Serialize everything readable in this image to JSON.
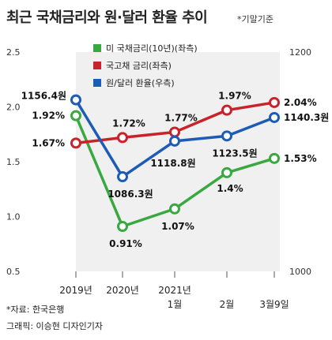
{
  "title": "최근 국채금리와 원·달러 환율 추이",
  "title_note": "*기말기준",
  "source": "*자료: 한국은행",
  "graphic": "그래픽: 이승현 디자인기자",
  "chart_data": {
    "type": "line",
    "title": "최근 국채금리와 원·달러 환율 추이",
    "categories": [
      {
        "line1": "2019년",
        "line2": ""
      },
      {
        "line1": "2020년",
        "line2": ""
      },
      {
        "line1": "2021년",
        "line2": "1월"
      },
      {
        "line1": "",
        "line2": "2월"
      },
      {
        "line1": "",
        "line2": "3월9일"
      }
    ],
    "y_left": {
      "ticks": [
        "2.5",
        "2.0",
        "1.5",
        "1.0",
        "0.5"
      ],
      "range": [
        0.5,
        2.5
      ]
    },
    "y_right": {
      "ticks": [
        "1200",
        "1000"
      ],
      "range": [
        1000,
        1200
      ]
    },
    "grid": false,
    "series": [
      {
        "name": "미 국채금리(10년)(좌측)",
        "axis": "left",
        "color": "#3aa841",
        "values": [
          1.92,
          0.91,
          1.07,
          1.4,
          1.53
        ],
        "labels": [
          "1.92%",
          "0.91%",
          "1.07%",
          "1.4%",
          "1.53%"
        ]
      },
      {
        "name": "국고채 금리(좌측)",
        "axis": "left",
        "color": "#c8232b",
        "values": [
          1.67,
          1.72,
          1.77,
          1.97,
          2.04
        ],
        "labels": [
          "1.67%",
          "1.72%",
          "1.77%",
          "1.97%",
          "2.04%"
        ]
      },
      {
        "name": "원/달러 환율(우측)",
        "axis": "right",
        "color": "#1d5bb5",
        "values": [
          1156.4,
          1086.3,
          1118.8,
          1123.5,
          1140.3
        ],
        "labels": [
          "1156.4원",
          "1086.3원",
          "1118.8원",
          "1123.5원",
          "1140.3원"
        ]
      }
    ]
  }
}
